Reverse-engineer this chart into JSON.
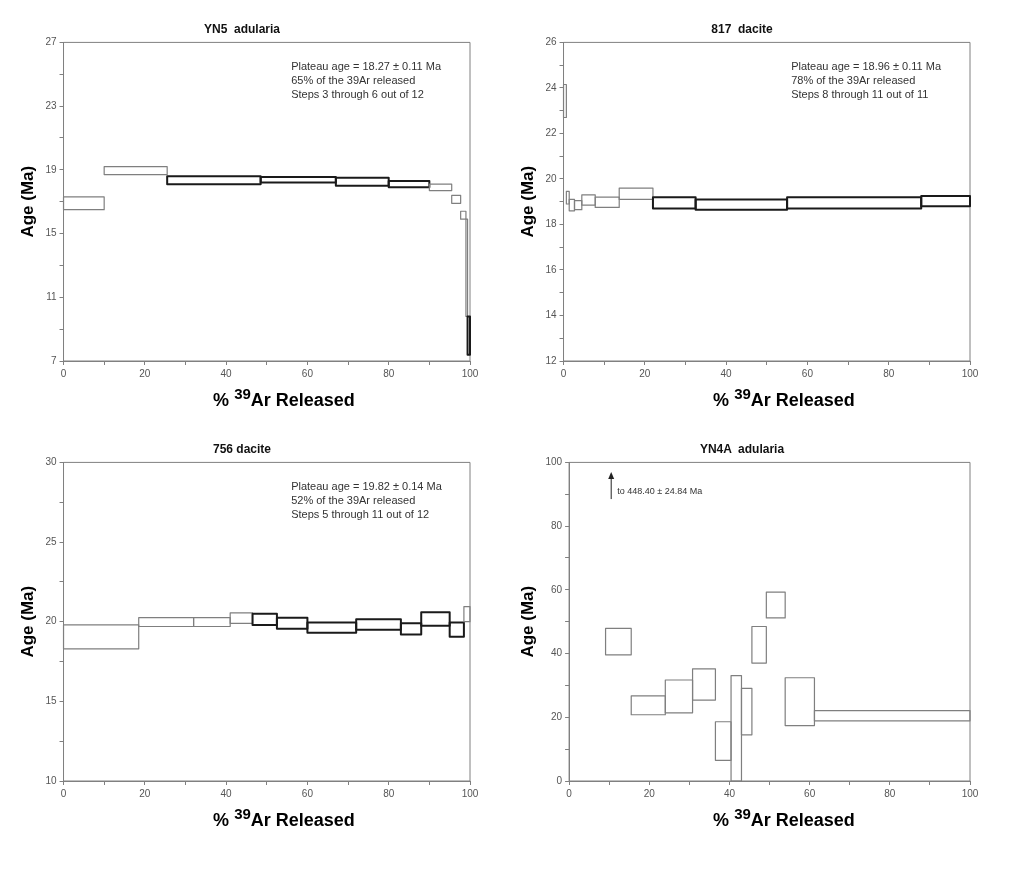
{
  "chart_data": [
    {
      "type": "bar",
      "title": "YN5  adularia",
      "xlabel": "% $^{39}$Ar Released",
      "ylabel": "Age (Ma)",
      "xlim": [
        0,
        100
      ],
      "xticks": [
        0,
        {
          "value": 10,
          "label": null
        },
        20,
        {
          "value": 30,
          "label": null
        },
        40,
        {
          "value": 50,
          "label": null
        },
        60,
        {
          "value": 70,
          "label": null
        },
        80,
        {
          "value": 90,
          "label": null
        },
        100
      ],
      "ylim": [
        7,
        27
      ],
      "yticks": [
        7,
        {
          "value": 9,
          "label": null
        },
        11,
        {
          "value": 13,
          "label": null
        },
        15,
        {
          "value": 17,
          "label": null
        },
        19,
        {
          "value": 21,
          "label": null
        },
        23,
        {
          "value": 25,
          "label": null
        },
        27
      ],
      "annotations": [
        "Plateau age = 18.27 ± 0.11 Ma",
        "65% of the 39Ar released",
        "Steps 3 through 6 out of 12"
      ],
      "x": [
        5,
        17.75,
        37,
        57.75,
        73.5,
        85,
        92.75,
        96.6,
        98.35,
        99.2,
        99.7
      ],
      "base": [
        16.5,
        18.7,
        18.1,
        18.2,
        18.0,
        17.9,
        17.7,
        16.9,
        15.9,
        9.8,
        7.4
      ],
      "values": [
        0.8,
        0.5,
        0.5,
        0.35,
        0.5,
        0.4,
        0.4,
        0.5,
        0.5,
        6.1,
        2.4
      ],
      "colors": [
        "#7f7f7f",
        "#7f7f7f",
        "#1a1a1a",
        "#1a1a1a",
        "#1a1a1a",
        "#1a1a1a",
        "#7f7f7f",
        "#7f7f7f",
        "#7f7f7f",
        "#7f7f7f",
        "#1a1a1a"
      ]
    },
    {
      "type": "bar",
      "title": "817  dacite",
      "xlabel": "% $^{39}$Ar Released",
      "ylabel": "Age (Ma)",
      "xlim": [
        0,
        100
      ],
      "xticks": [
        0,
        {
          "value": 10,
          "label": null
        },
        20,
        {
          "value": 30,
          "label": null
        },
        40,
        {
          "value": 50,
          "label": null
        },
        60,
        {
          "value": 70,
          "label": null
        },
        80,
        {
          "value": 90,
          "label": null
        },
        100
      ],
      "ylim": [
        12,
        26
      ],
      "yticks": [
        12,
        {
          "value": 13,
          "label": null
        },
        14,
        {
          "value": 15,
          "label": null
        },
        16,
        {
          "value": 17,
          "label": null
        },
        18,
        {
          "value": 19,
          "label": null
        },
        20,
        {
          "value": 21,
          "label": null
        },
        22,
        {
          "value": 23,
          "label": null
        },
        24,
        {
          "value": 25,
          "label": null
        },
        26
      ],
      "annotations": [
        "Plateau age = 18.96 ± 0.11 Ma",
        "78% of the 39Ar released",
        "Steps 8 through 11 out of 11"
      ],
      "x": [
        0.35,
        1.05,
        2.05,
        3.6,
        6.15,
        10.75,
        17.85,
        27.25,
        43.75,
        71.5,
        94
      ],
      "base": [
        22.7,
        18.9,
        18.6,
        18.65,
        18.85,
        18.75,
        19.1,
        18.7,
        18.65,
        18.7,
        18.8
      ],
      "values": [
        1.45,
        0.55,
        0.5,
        0.4,
        0.45,
        0.45,
        0.5,
        0.5,
        0.45,
        0.5,
        0.45
      ],
      "colors": [
        "#7f7f7f",
        "#7f7f7f",
        "#7f7f7f",
        "#7f7f7f",
        "#7f7f7f",
        "#7f7f7f",
        "#7f7f7f",
        "#1a1a1a",
        "#1a1a1a",
        "#1a1a1a",
        "#1a1a1a"
      ]
    },
    {
      "type": "bar",
      "title": "756 dacite",
      "xlabel": "% $^{39}$Ar Released",
      "ylabel": "Age (Ma)",
      "xlim": [
        0,
        100
      ],
      "xticks": [
        0,
        {
          "value": 10,
          "label": null
        },
        20,
        {
          "value": 30,
          "label": null
        },
        40,
        {
          "value": 50,
          "label": null
        },
        60,
        {
          "value": 70,
          "label": null
        },
        80,
        {
          "value": 90,
          "label": null
        },
        100
      ],
      "ylim": [
        10,
        30
      ],
      "yticks": [
        10,
        {
          "value": 12.5,
          "label": null
        },
        15,
        {
          "value": 17.5,
          "label": null
        },
        20,
        {
          "value": 22.5,
          "label": null
        },
        25,
        {
          "value": 27.5,
          "label": null
        },
        30
      ],
      "annotations": [
        "Plateau age = 19.82 ± 0.14 Ma",
        "52% of the 39Ar released",
        "Steps 5 through 11 out of 12"
      ],
      "x": [
        9.25,
        25.25,
        36.5,
        43.75,
        49.5,
        56.25,
        66,
        77.5,
        85.5,
        91.5,
        96.75,
        99.25
      ],
      "base": [
        18.3,
        19.7,
        19.7,
        19.9,
        19.8,
        19.55,
        19.3,
        19.5,
        19.2,
        19.75,
        19.05,
        20.0
      ],
      "values": [
        1.5,
        0.55,
        0.55,
        0.65,
        0.7,
        0.7,
        0.65,
        0.65,
        0.7,
        0.85,
        0.9,
        0.95
      ],
      "colors": [
        "#7f7f7f",
        "#7f7f7f",
        "#7f7f7f",
        "#7f7f7f",
        "#1a1a1a",
        "#1a1a1a",
        "#1a1a1a",
        "#1a1a1a",
        "#1a1a1a",
        "#1a1a1a",
        "#1a1a1a",
        "#7f7f7f"
      ]
    },
    {
      "type": "bar",
      "title": "YN4A  adularia",
      "xlabel": "% $^{39}$Ar Released",
      "ylabel": "Age (Ma)",
      "xlim": [
        0,
        100
      ],
      "xticks": [
        0,
        {
          "value": 10,
          "label": null
        },
        20,
        {
          "value": 30,
          "label": null
        },
        40,
        {
          "value": 50,
          "label": null
        },
        60,
        {
          "value": 70,
          "label": null
        },
        80,
        {
          "value": 90,
          "label": null
        },
        100
      ],
      "ylim": [
        0,
        100
      ],
      "yticks": [
        0,
        {
          "value": 10,
          "label": null
        },
        20,
        {
          "value": 30,
          "label": null
        },
        40,
        {
          "value": 50,
          "label": null
        },
        60,
        {
          "value": 70,
          "label": null
        },
        80,
        {
          "value": 90,
          "label": null
        },
        100
      ],
      "annotations": [
        "to 448.40 ± 24.84 Ma"
      ],
      "x": [
        12.3,
        19.75,
        27.4,
        33.65,
        38.45,
        41.7,
        44.3,
        47.4,
        51.55,
        57.55,
        80.6
      ],
      "base": [
        39.6,
        20.8,
        21.4,
        25.4,
        6.5,
        0,
        14.5,
        37,
        51.2,
        17.4,
        18.9
      ],
      "values": [
        8.3,
        5.9,
        10.3,
        9.8,
        12.1,
        33.1,
        14.6,
        11.5,
        8.1,
        15,
        3.2
      ],
      "colors": [
        "#7f7f7f",
        "#7f7f7f",
        "#7f7f7f",
        "#7f7f7f",
        "#7f7f7f",
        "#7f7f7f",
        "#7f7f7f",
        "#7f7f7f",
        "#7f7f7f",
        "#7f7f7f",
        "#7f7f7f"
      ]
    }
  ]
}
